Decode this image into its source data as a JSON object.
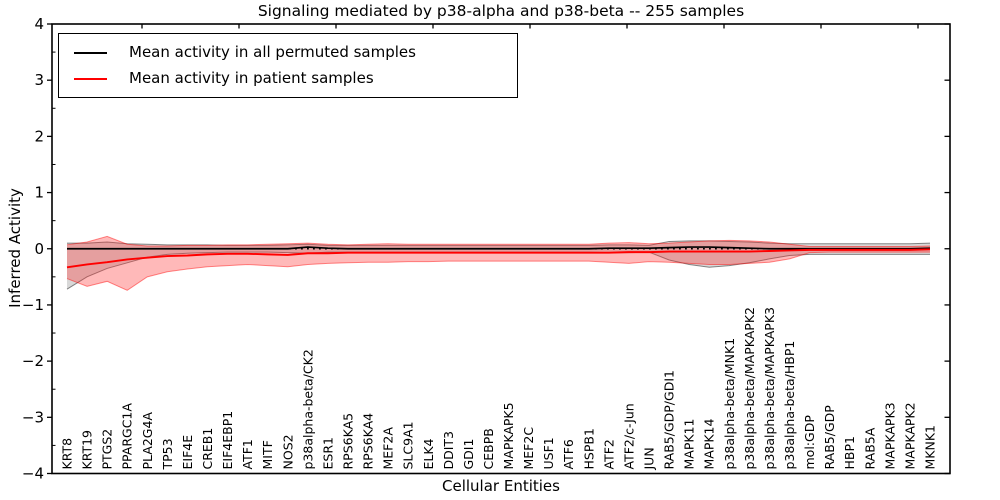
{
  "chart_data": {
    "type": "line",
    "title": "Signaling mediated by p38-alpha and p38-beta -- 255 samples",
    "xlabel": "Cellular Entities",
    "ylabel": "Inferred Activity",
    "ylim": [
      -4,
      4
    ],
    "y_major_ticks": [
      -4,
      -3,
      -2,
      -1,
      0,
      1,
      2,
      3,
      4
    ],
    "grid": false,
    "legend_position": "upper left",
    "zero_reference_line": 0,
    "categories": [
      "KRT8",
      "KRT19",
      "PTGS2",
      "PPARGC1A",
      "PLA2G4A",
      "TP53",
      "EIF4E",
      "CREB1",
      "EIF4EBP1",
      "ATF1",
      "MITF",
      "NOS2",
      "p38alpha-beta/CK2",
      "ESR1",
      "RPS6KA5",
      "RPS6KA4",
      "MEF2A",
      "SLC9A1",
      "ELK4",
      "DDIT3",
      "GDI1",
      "CEBPB",
      "MAPKAPK5",
      "MEF2C",
      "USF1",
      "ATF6",
      "HSPB1",
      "ATF2",
      "ATF2/c-Jun",
      "JUN",
      "RAB5/GDP/GDI1",
      "MAPK11",
      "MAPK14",
      "p38alpha-beta/MNK1",
      "p38alpha-beta/MAPKAPK2",
      "p38alpha-beta/MAPKAPK3",
      "p38alpha-beta/HBP1",
      "mol:GDP",
      "RAB5/GDP",
      "HBP1",
      "RAB5A",
      "MAPKAPK3",
      "MAPKAPK2",
      "MKNK1"
    ],
    "series": [
      {
        "name": "Mean activity in all permuted samples",
        "color": "#000000",
        "band_color": "#8a8a8a",
        "values": [
          0,
          0,
          0,
          0,
          0,
          0,
          0,
          0,
          0,
          0,
          0,
          0,
          0.03,
          0.01,
          0,
          0,
          0,
          0,
          0,
          0,
          0,
          0,
          0,
          0,
          0,
          0,
          0,
          0.01,
          0.01,
          0.01,
          0.02,
          0.03,
          0.03,
          0.02,
          0.01,
          0,
          0,
          0,
          0,
          0,
          0,
          0,
          0,
          0.01
        ],
        "band_upper": [
          0.1,
          0.1,
          0.12,
          0.09,
          0.08,
          0.07,
          0.07,
          0.07,
          0.06,
          0.06,
          0.06,
          0.07,
          0.08,
          0.06,
          0.06,
          0.06,
          0.06,
          0.06,
          0.06,
          0.06,
          0.06,
          0.06,
          0.06,
          0.06,
          0.06,
          0.06,
          0.06,
          0.07,
          0.07,
          0.06,
          0.13,
          0.14,
          0.14,
          0.13,
          0.12,
          0.1,
          0.09,
          0.09,
          0.09,
          0.09,
          0.09,
          0.09,
          0.09,
          0.1
        ],
        "band_lower": [
          -0.72,
          -0.5,
          -0.35,
          -0.25,
          -0.15,
          -0.1,
          -0.08,
          -0.07,
          -0.06,
          -0.06,
          -0.06,
          -0.07,
          -0.08,
          -0.06,
          -0.06,
          -0.06,
          -0.06,
          -0.06,
          -0.06,
          -0.06,
          -0.06,
          -0.06,
          -0.06,
          -0.06,
          -0.06,
          -0.06,
          -0.06,
          -0.07,
          -0.07,
          -0.06,
          -0.2,
          -0.28,
          -0.33,
          -0.3,
          -0.25,
          -0.18,
          -0.12,
          -0.1,
          -0.1,
          -0.1,
          -0.1,
          -0.1,
          -0.1,
          -0.1
        ]
      },
      {
        "name": "Mean activity in patient samples",
        "color": "#ff0000",
        "band_color": "#ff2a2a",
        "values": [
          -0.33,
          -0.28,
          -0.24,
          -0.19,
          -0.16,
          -0.13,
          -0.12,
          -0.1,
          -0.09,
          -0.09,
          -0.1,
          -0.11,
          -0.08,
          -0.08,
          -0.07,
          -0.07,
          -0.07,
          -0.07,
          -0.07,
          -0.07,
          -0.07,
          -0.07,
          -0.07,
          -0.07,
          -0.07,
          -0.07,
          -0.07,
          -0.07,
          -0.06,
          -0.06,
          -0.05,
          -0.05,
          -0.05,
          -0.05,
          -0.05,
          -0.04,
          -0.03,
          -0.02,
          -0.02,
          -0.02,
          -0.02,
          -0.02,
          -0.02,
          -0.01
        ],
        "band_upper": [
          0.07,
          0.12,
          0.22,
          0.08,
          0.05,
          0.05,
          0.06,
          0.06,
          0.07,
          0.07,
          0.08,
          0.09,
          0.1,
          0.08,
          0.07,
          0.08,
          0.09,
          0.08,
          0.08,
          0.08,
          0.08,
          0.08,
          0.08,
          0.08,
          0.08,
          0.08,
          0.08,
          0.1,
          0.11,
          0.09,
          0.1,
          0.12,
          0.14,
          0.15,
          0.14,
          0.12,
          0.08,
          0.04,
          0.04,
          0.04,
          0.04,
          0.04,
          0.04,
          0.05
        ],
        "band_lower": [
          -0.53,
          -0.67,
          -0.58,
          -0.74,
          -0.5,
          -0.41,
          -0.36,
          -0.32,
          -0.3,
          -0.28,
          -0.3,
          -0.32,
          -0.28,
          -0.26,
          -0.25,
          -0.24,
          -0.24,
          -0.23,
          -0.23,
          -0.22,
          -0.22,
          -0.22,
          -0.22,
          -0.22,
          -0.22,
          -0.22,
          -0.22,
          -0.24,
          -0.26,
          -0.23,
          -0.24,
          -0.26,
          -0.28,
          -0.28,
          -0.26,
          -0.24,
          -0.18,
          -0.07,
          -0.06,
          -0.06,
          -0.06,
          -0.06,
          -0.06,
          -0.06
        ]
      }
    ]
  }
}
